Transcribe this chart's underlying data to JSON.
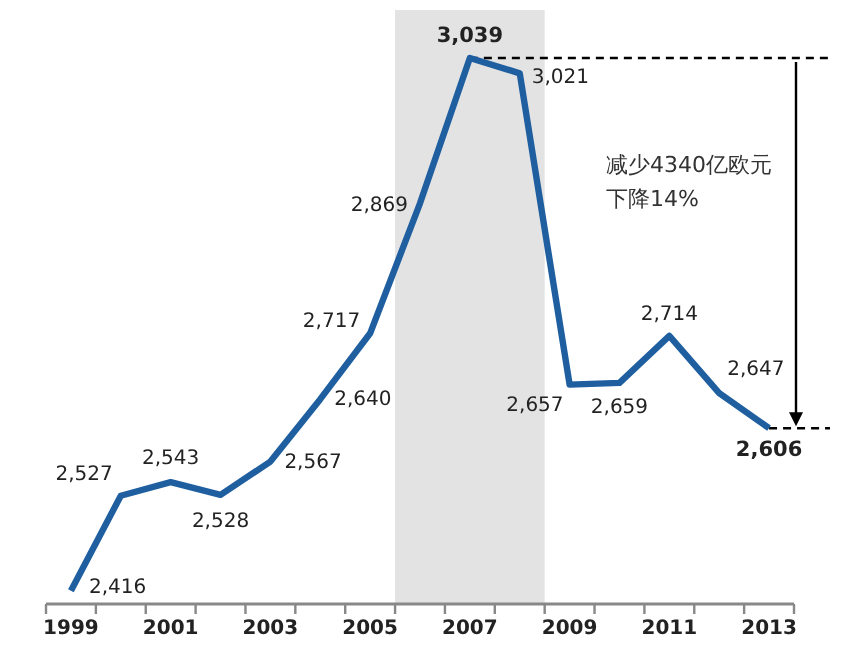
{
  "chart_data": {
    "type": "line",
    "x": [
      1999,
      2000,
      2001,
      2002,
      2003,
      2004,
      2005,
      2006,
      2007,
      2008,
      2009,
      2010,
      2011,
      2012,
      2013
    ],
    "series": [
      {
        "color": "#1f5fa0",
        "values": [
          2416,
          2527,
          2543,
          2528,
          2567,
          2640,
          2717,
          2869,
          3039,
          3021,
          2657,
          2659,
          2714,
          2647,
          2606
        ],
        "value_labels": [
          "2,416",
          "2,527",
          "2,543",
          "2,528",
          "2,567",
          "2,640",
          "2,717",
          "2,869",
          "3,039",
          "3,021",
          "2,657",
          "2,659",
          "2,714",
          "2,647",
          "2,606"
        ]
      }
    ],
    "xlim": [
      1998.5,
      2013.5
    ],
    "xticks": [
      {
        "value": 1998.5,
        "label": null
      },
      1999,
      {
        "value": 1999.5,
        "label": null
      },
      {
        "value": 2000.5,
        "label": null
      },
      2001,
      {
        "value": 2001.5,
        "label": null
      },
      {
        "value": 2002.5,
        "label": null
      },
      2003,
      {
        "value": 2003.5,
        "label": null
      },
      {
        "value": 2004.5,
        "label": null
      },
      2005,
      {
        "value": 2005.5,
        "label": null
      },
      {
        "value": 2006.5,
        "label": null
      },
      2007,
      {
        "value": 2007.5,
        "label": null
      },
      {
        "value": 2008.5,
        "label": null
      },
      2009,
      {
        "value": 2009.5,
        "label": null
      },
      {
        "value": 2010.5,
        "label": null
      },
      2011,
      {
        "value": 2011.5,
        "label": null
      },
      {
        "value": 2012.5,
        "label": null
      },
      2013,
      {
        "value": 2013.5,
        "label": null
      }
    ],
    "tick_labels": "x",
    "grid": false,
    "marker": "none",
    "line_style": "solid",
    "bands": [
      {
        "axis": "x",
        "from": 2005.5,
        "to": 2008.5,
        "color": "#e3e3e3"
      }
    ],
    "annotations": [
      "减少4340亿欧元",
      "下降14%"
    ]
  }
}
